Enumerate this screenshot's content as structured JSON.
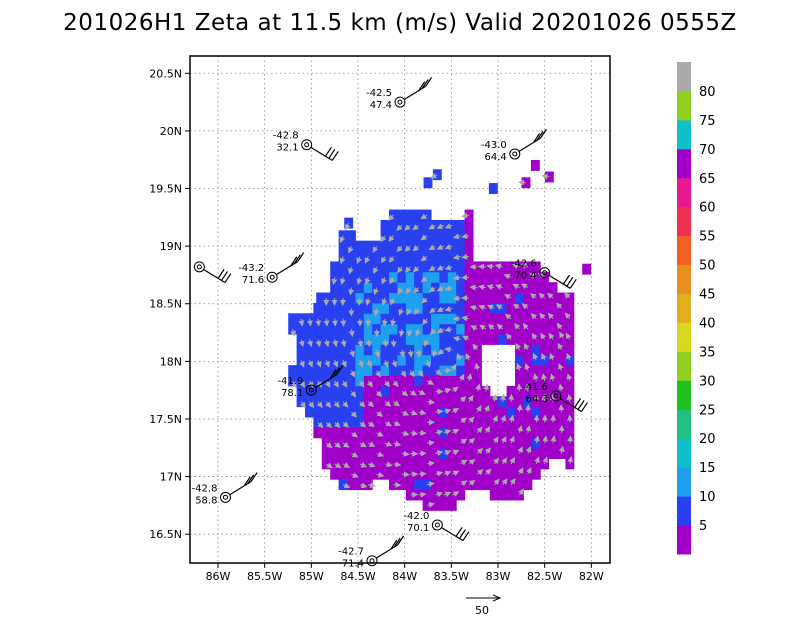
{
  "chart_data": {
    "type": "heatmap",
    "title": "201026H1  Zeta at 11.5 km (m/s) Valid 20201026  0555Z",
    "x_ticks": [
      "86W",
      "85.5W",
      "85W",
      "84.5W",
      "84W",
      "83.5W",
      "83W",
      "82.5W",
      "82W"
    ],
    "y_ticks": [
      "20.5N",
      "20N",
      "19.5N",
      "19N",
      "18.5N",
      "18N",
      "17.5N",
      "17N",
      "16.5N"
    ],
    "xlim": [
      -86.3,
      -81.8
    ],
    "ylim": [
      16.25,
      20.65
    ],
    "colorbar": {
      "labels": [
        "5",
        "10",
        "15",
        "20",
        "25",
        "30",
        "35",
        "40",
        "45",
        "50",
        "55",
        "60",
        "65",
        "70",
        "75",
        "80"
      ],
      "colors": [
        "#a000c8",
        "#2840f0",
        "#1ea0f0",
        "#10c0c8",
        "#20c080",
        "#20c020",
        "#90d020",
        "#d8d820",
        "#e0b020",
        "#e8901e",
        "#f06020",
        "#f03050",
        "#e81890",
        "#a000c8",
        "#10c0c8",
        "#90d020",
        "#aaaaaa"
      ]
    },
    "observations": [
      {
        "lon": -84.05,
        "lat": 20.25,
        "temp": "-42.5",
        "speed": "47.4"
      },
      {
        "lon": -85.05,
        "lat": 19.88,
        "temp": "-42.8",
        "speed": "32.1"
      },
      {
        "lon": -82.82,
        "lat": 19.8,
        "temp": "-43.0",
        "speed": "64.4"
      },
      {
        "lon": -86.2,
        "lat": 18.82,
        "temp": "",
        "speed": ""
      },
      {
        "lon": -85.42,
        "lat": 18.73,
        "temp": "-43.2",
        "speed": "71.6"
      },
      {
        "lon": -82.5,
        "lat": 18.77,
        "temp": "-42.6",
        "speed": "70.4"
      },
      {
        "lon": -85.0,
        "lat": 17.75,
        "temp": "-41.9",
        "speed": "78.1"
      },
      {
        "lon": -82.38,
        "lat": 17.7,
        "temp": "-41.6",
        "speed": "64.3"
      },
      {
        "lon": -85.92,
        "lat": 16.82,
        "temp": "-42.8",
        "speed": "58.8"
      },
      {
        "lon": -83.65,
        "lat": 16.58,
        "temp": "-42.0",
        "speed": "70.1"
      },
      {
        "lon": -84.35,
        "lat": 16.27,
        "temp": "-42.7",
        "speed": "71.4"
      }
    ],
    "reference_vector": {
      "label": "50"
    },
    "grid": true
  }
}
